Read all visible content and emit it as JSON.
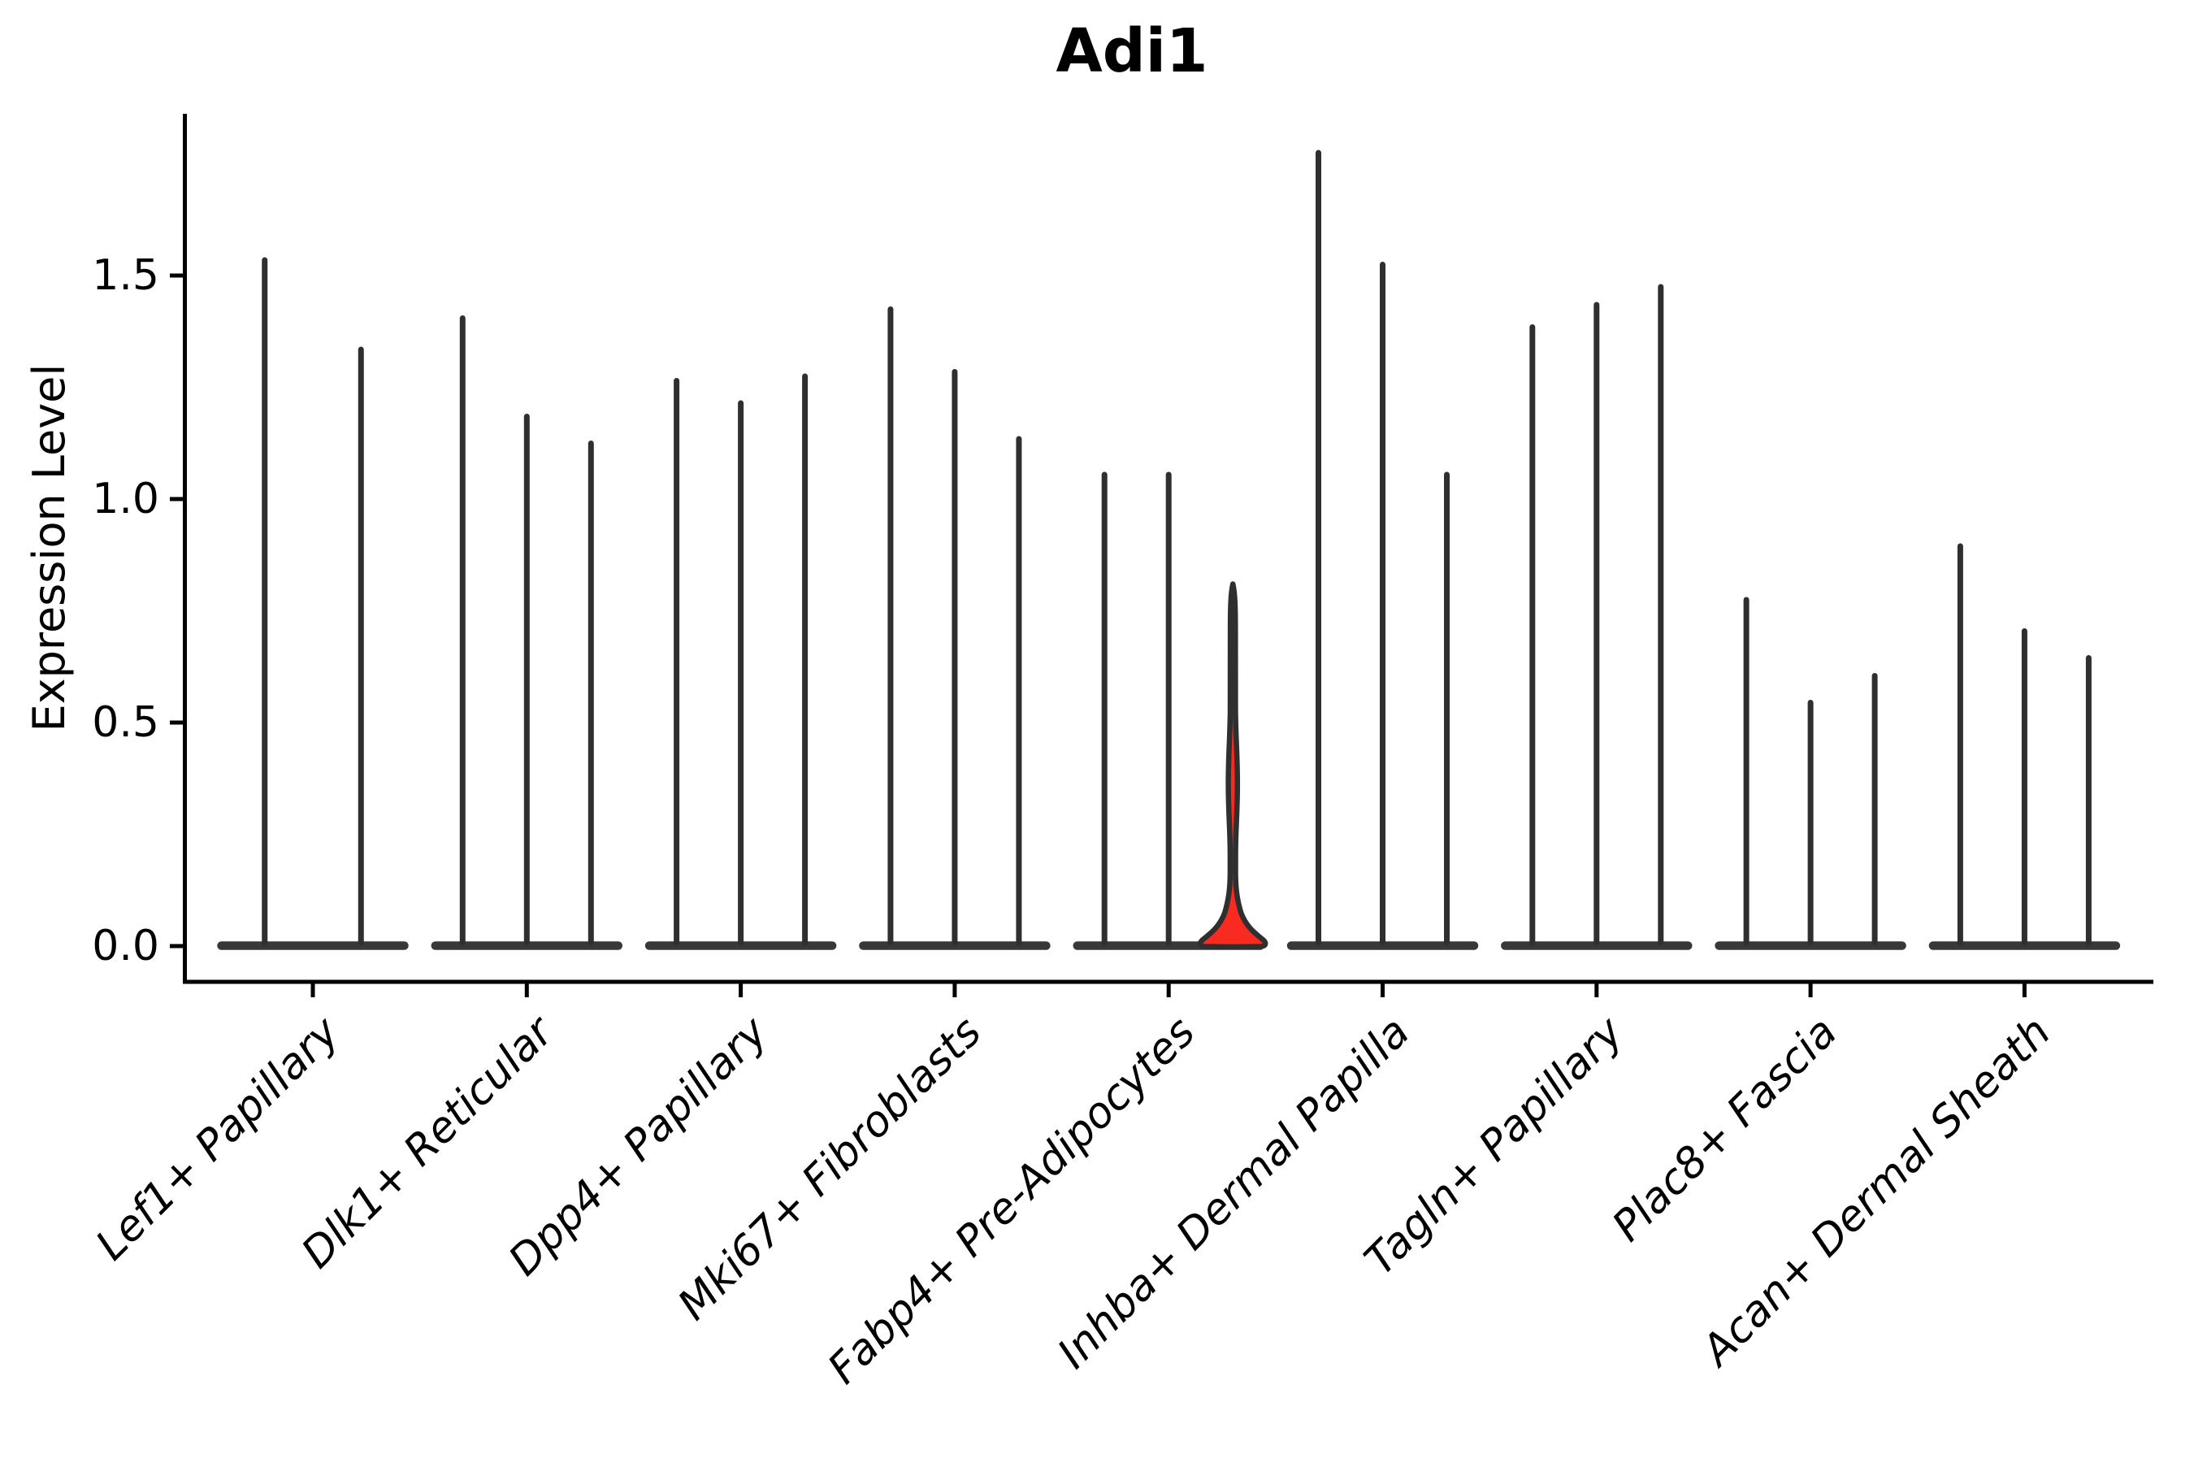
{
  "title": "Adi1",
  "y_axis": {
    "label": "Expression Level",
    "tick_labels": [
      "0.0",
      "0.5",
      "1.0",
      "1.5"
    ]
  },
  "colors": {
    "violin_stroke": "#2f2f2f",
    "base_bar": "#383838",
    "highlight_fill": "#f92a1f",
    "axis": "#000000",
    "background": "#ffffff"
  },
  "chart_data": {
    "type": "violin",
    "title": "Adi1",
    "xlabel": "",
    "ylabel": "Expression Level",
    "ylim": [
      -0.08,
      1.87
    ],
    "yticks": [
      0.0,
      0.5,
      1.0,
      1.5
    ],
    "ytick_labels": [
      "0.0",
      "0.5",
      "1.0",
      "1.5"
    ],
    "x_tick_label_angle_deg": 45,
    "legend_position": "none",
    "grid": false,
    "categories": [
      "Lef1+ Papillary",
      "Dlk1+ Reticular",
      "Dpp4+ Papillary",
      "Mki67+ Fibroblasts",
      "Fabp4+ Pre-Adipocytes",
      "Inhba+ Dermal Papilla",
      "Tagln+ Papillary",
      "Plac8+ Fascia",
      "Acan+ Dermal Sheath"
    ],
    "description": "Violin plot of Adi1 expression; each category contains 2-3 near-zero violins rendered as thin spikes (spike top = max expression) over wide flat bases at 0; one violin is highlighted red.",
    "violins_per_category": [
      [
        1.54,
        1.34
      ],
      [
        1.41,
        1.19,
        1.13
      ],
      [
        1.27,
        1.22,
        1.28
      ],
      [
        1.43,
        1.29,
        1.14
      ],
      [
        1.06,
        1.06,
        0.81
      ],
      [
        1.78,
        1.53,
        1.06
      ],
      [
        1.39,
        1.44,
        1.48
      ],
      [
        0.78,
        0.55,
        0.61
      ],
      [
        0.9,
        0.71,
        0.65
      ]
    ],
    "highlight": {
      "category_index": 4,
      "violin_index": 2,
      "max": 0.81,
      "bulge_center": 0.36,
      "fill": "#f92a1f"
    }
  }
}
